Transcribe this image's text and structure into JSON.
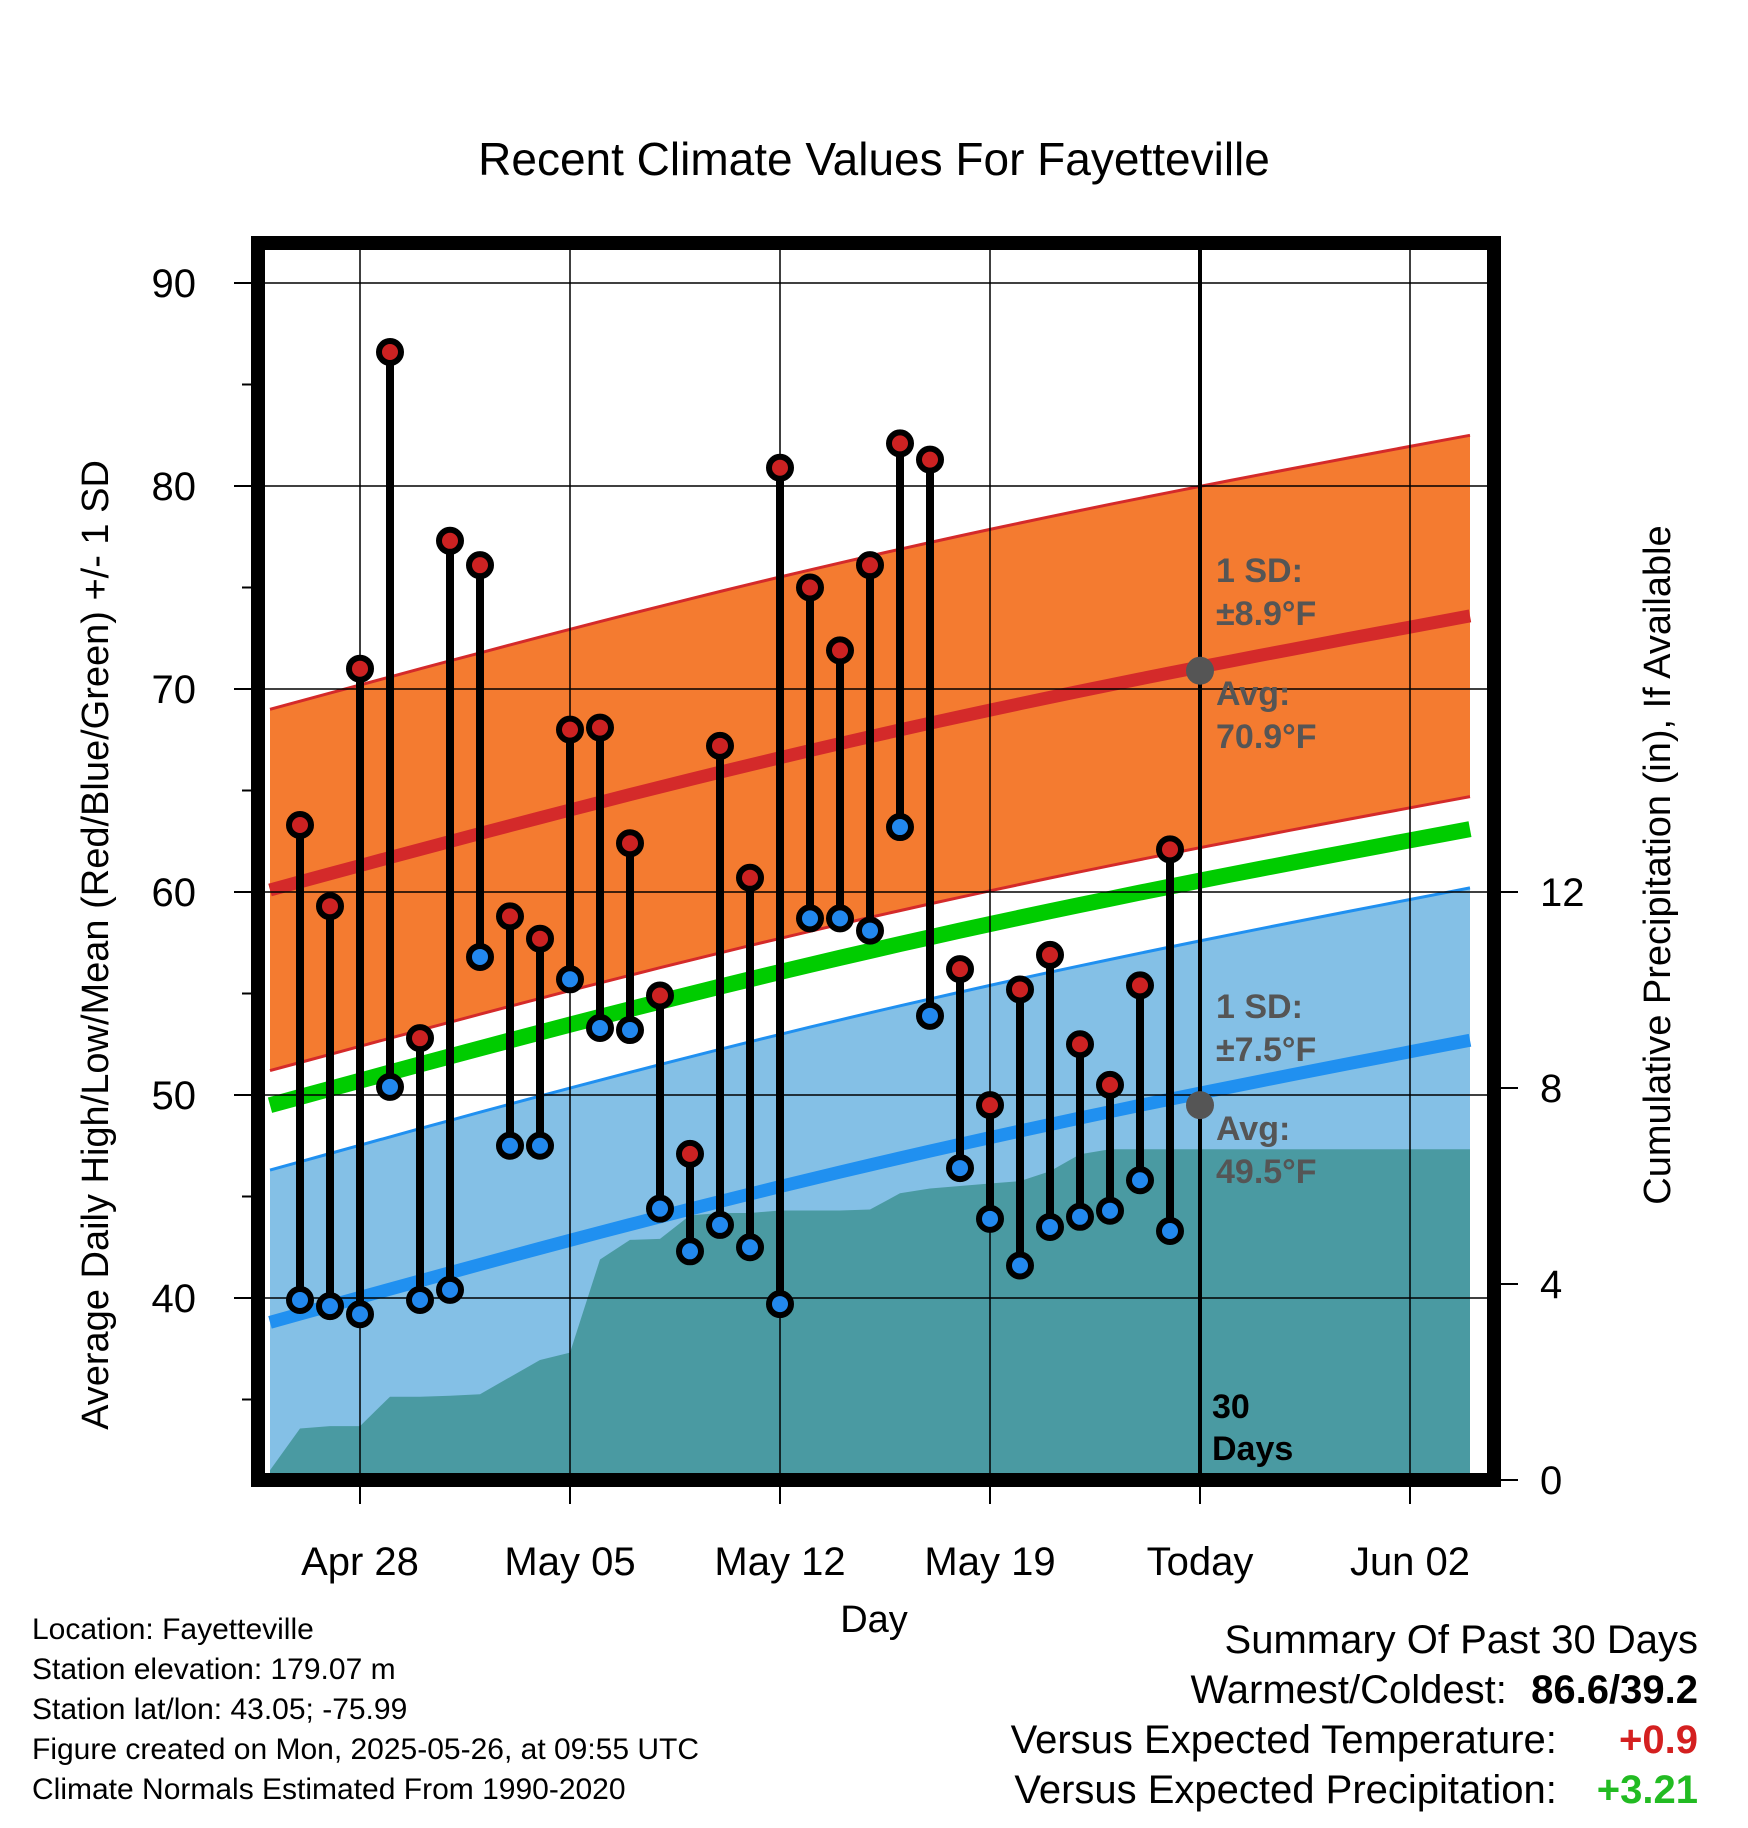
{
  "chart_data": {
    "type": "line",
    "title": "Recent Climate Values For Fayetteville",
    "xlabel": "Day",
    "ylabel": "Average Daily High/Low/Mean (Red/Blue/Green) +/- 1 SD",
    "y2label": "Cumulative Precipitation (in), If Available",
    "ylim": [
      31,
      92
    ],
    "y2lim": [
      0,
      13
    ],
    "x_tick_labels": [
      "Apr 28",
      "May 05",
      "May 12",
      "May 19",
      "Today",
      "Jun 02"
    ],
    "y_ticks": [
      40,
      50,
      60,
      70,
      80,
      90
    ],
    "y2_ticks": [
      0,
      4,
      8,
      12
    ],
    "grid": true,
    "observations": {
      "dates": [
        "Apr 26",
        "Apr 27",
        "Apr 28",
        "Apr 29",
        "Apr 30",
        "May 01",
        "May 02",
        "May 03",
        "May 04",
        "May 05",
        "May 06",
        "May 07",
        "May 08",
        "May 09",
        "May 10",
        "May 11",
        "May 12",
        "May 13",
        "May 14",
        "May 15",
        "May 16",
        "May 17",
        "May 18",
        "May 19",
        "May 20",
        "May 21",
        "May 22",
        "May 23",
        "May 24",
        "May 25"
      ],
      "high": [
        63.3,
        59.3,
        71.0,
        86.6,
        52.8,
        77.3,
        76.1,
        58.8,
        57.7,
        68.0,
        68.1,
        62.4,
        54.9,
        47.1,
        67.2,
        60.7,
        80.9,
        75.0,
        71.9,
        76.1,
        82.1,
        81.3,
        56.2,
        49.5,
        55.2,
        56.9,
        52.5,
        50.5,
        55.4,
        62.1
      ],
      "low": [
        39.9,
        39.6,
        39.2,
        50.4,
        39.9,
        40.4,
        56.8,
        47.5,
        47.5,
        55.7,
        53.3,
        53.2,
        44.4,
        42.3,
        43.6,
        42.5,
        39.7,
        58.7,
        58.7,
        58.1,
        63.2,
        53.9,
        46.4,
        43.9,
        41.6,
        43.5,
        44.0,
        44.3,
        45.8,
        43.3
      ]
    },
    "normals": {
      "start_day": "Apr 25",
      "end_day": "Jun 04",
      "avg_high_start": 60.1,
      "avg_high_end": 73.6,
      "sd_high": 8.9,
      "avg_low_start": 38.8,
      "avg_low_end": 52.7,
      "sd_low": 7.5,
      "mean_start": 49.5,
      "mean_end": 63.1
    },
    "precipitation": {
      "dates": [
        "Apr 25",
        "Apr 26",
        "Apr 27",
        "Apr 28",
        "Apr 29",
        "Apr 30",
        "May 01",
        "May 02",
        "May 03",
        "May 04",
        "May 05",
        "May 06",
        "May 07",
        "May 08",
        "May 09",
        "May 10",
        "May 11",
        "May 12",
        "May 13",
        "May 14",
        "May 15",
        "May 16",
        "May 17",
        "May 18",
        "May 19",
        "May 20",
        "May 21",
        "May 22",
        "May 23",
        "May 24",
        "May 25",
        "Jun 04"
      ],
      "cumulative": [
        0.2,
        1.05,
        1.1,
        1.1,
        1.7,
        1.7,
        1.72,
        1.75,
        2.1,
        2.45,
        2.6,
        4.5,
        4.9,
        4.92,
        5.4,
        5.45,
        5.45,
        5.5,
        5.5,
        5.5,
        5.52,
        5.85,
        5.95,
        6.0,
        6.05,
        6.1,
        6.3,
        6.65,
        6.75,
        6.75,
        6.75,
        6.75
      ]
    },
    "series": [
      {
        "name": "High",
        "color": "#cc2222"
      },
      {
        "name": "Low",
        "color": "#2288ee"
      },
      {
        "name": "Mean",
        "color": "#00cc00"
      }
    ],
    "annotations": {
      "high_sd_line1": "1 SD:",
      "high_sd_line2": "±8.9°F",
      "high_avg_line1": "Avg:",
      "high_avg_line2": "70.9°F",
      "low_sd_line1": "1 SD:",
      "low_sd_line2": "±7.5°F",
      "low_avg_line1": "Avg:",
      "low_avg_line2": "49.5°F",
      "days_line1": "30",
      "days_line2": "Days",
      "today_high_avg": 70.9,
      "today_low_avg": 49.5
    }
  },
  "colors": {
    "high_band": "#f47b30",
    "high_line": "#d42a2a",
    "low_band": "#84c0e6",
    "low_line": "#2090f0",
    "mean_line": "#00cc00",
    "precip_fill": "#4a9aa2",
    "high_dot": "#cc2222",
    "low_dot": "#2288ee",
    "today_marker": "#555555"
  },
  "footer": {
    "location": "Location: Fayetteville",
    "elevation": "Station elevation: 179.07 m",
    "latlon": "Station lat/lon: 43.05; -75.99",
    "created": "Figure created on Mon, 2025-05-26, at 09:55 UTC",
    "normals": "Climate Normals Estimated From 1990-2020"
  },
  "summary": {
    "title": "Summary Of Past 30 Days",
    "warm_label": "Warmest/Coldest:",
    "warm_value": "86.6/39.2",
    "temp_label": "Versus Expected Temperature:",
    "temp_value": "+0.9",
    "precip_label": "Versus Expected Precipitation:",
    "precip_value": "+3.21"
  }
}
